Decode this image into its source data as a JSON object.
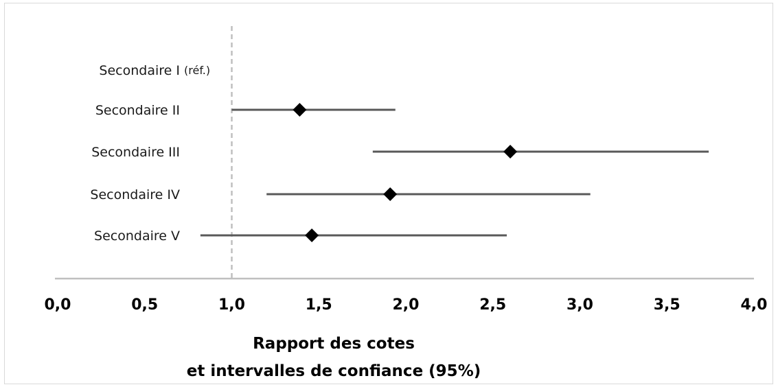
{
  "chart_data": {
    "type": "forest",
    "title": "",
    "xlabel_lines": [
      "Rapport des cotes",
      "et intervalles de confiance (95%)"
    ],
    "xlim": [
      0,
      4
    ],
    "xticks": [
      0,
      0.5,
      1,
      1.5,
      2,
      2.5,
      3,
      3.5,
      4
    ],
    "tick_labels": [
      "0,0",
      "0,5",
      "1,0",
      "1,5",
      "2,0",
      "2,5",
      "3,0",
      "3,5",
      "4,0"
    ],
    "reference_line": 1.0,
    "reference_category_suffix": "(réf.)",
    "categories": [
      "Secondaire I",
      "Secondaire II",
      "Secondaire III",
      "Secondaire IV",
      "Secondaire V"
    ],
    "estimates": [
      null,
      1.39,
      2.6,
      1.91,
      1.46
    ],
    "ci_lower": [
      null,
      1.0,
      1.81,
      1.2,
      0.82
    ],
    "ci_upper": [
      null,
      1.94,
      3.74,
      3.06,
      2.58
    ],
    "colors": {
      "ci_line": "#595959",
      "marker": "#000000",
      "axis": "#bfbfbf",
      "ref_line": "#bfbfbf"
    }
  }
}
